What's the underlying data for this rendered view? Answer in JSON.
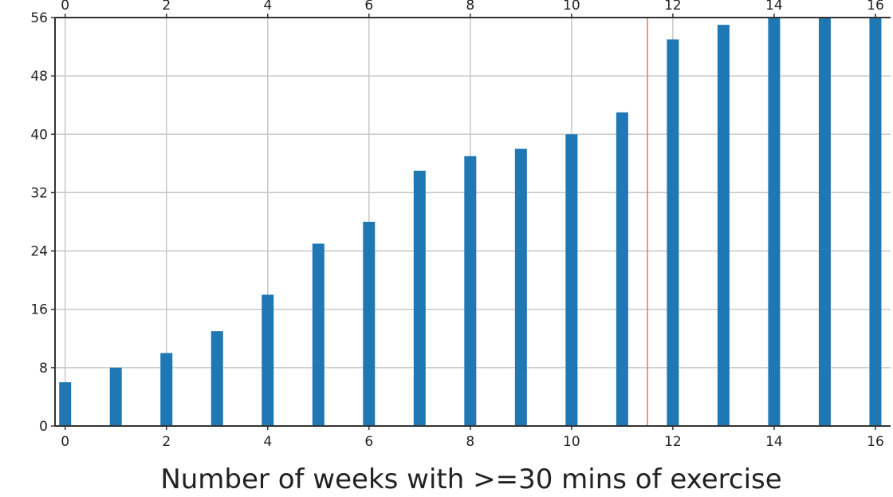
{
  "chart_data": {
    "type": "bar",
    "title": "",
    "xlabel": "Number of weeks with >=30 mins of exercise",
    "ylabel": "",
    "categories": [
      0,
      1,
      2,
      3,
      4,
      5,
      6,
      7,
      8,
      9,
      10,
      11,
      12,
      13,
      14,
      15,
      16
    ],
    "values": [
      6,
      8,
      10,
      13,
      18,
      25,
      28,
      35,
      37,
      38,
      40,
      43,
      53,
      55,
      56,
      56,
      56
    ],
    "xlim": [
      -0.2,
      16.3
    ],
    "ylim": [
      0,
      56
    ],
    "xticks": [
      0,
      2,
      4,
      6,
      8,
      10,
      12,
      14,
      16
    ],
    "yticks": [
      0,
      8,
      16,
      24,
      32,
      40,
      48,
      56
    ],
    "secondary_top_xaxis": true,
    "grid": true,
    "bar_color": "#1f77b4",
    "threshold_line": {
      "x": 11.5,
      "color": "#e8706e"
    }
  }
}
